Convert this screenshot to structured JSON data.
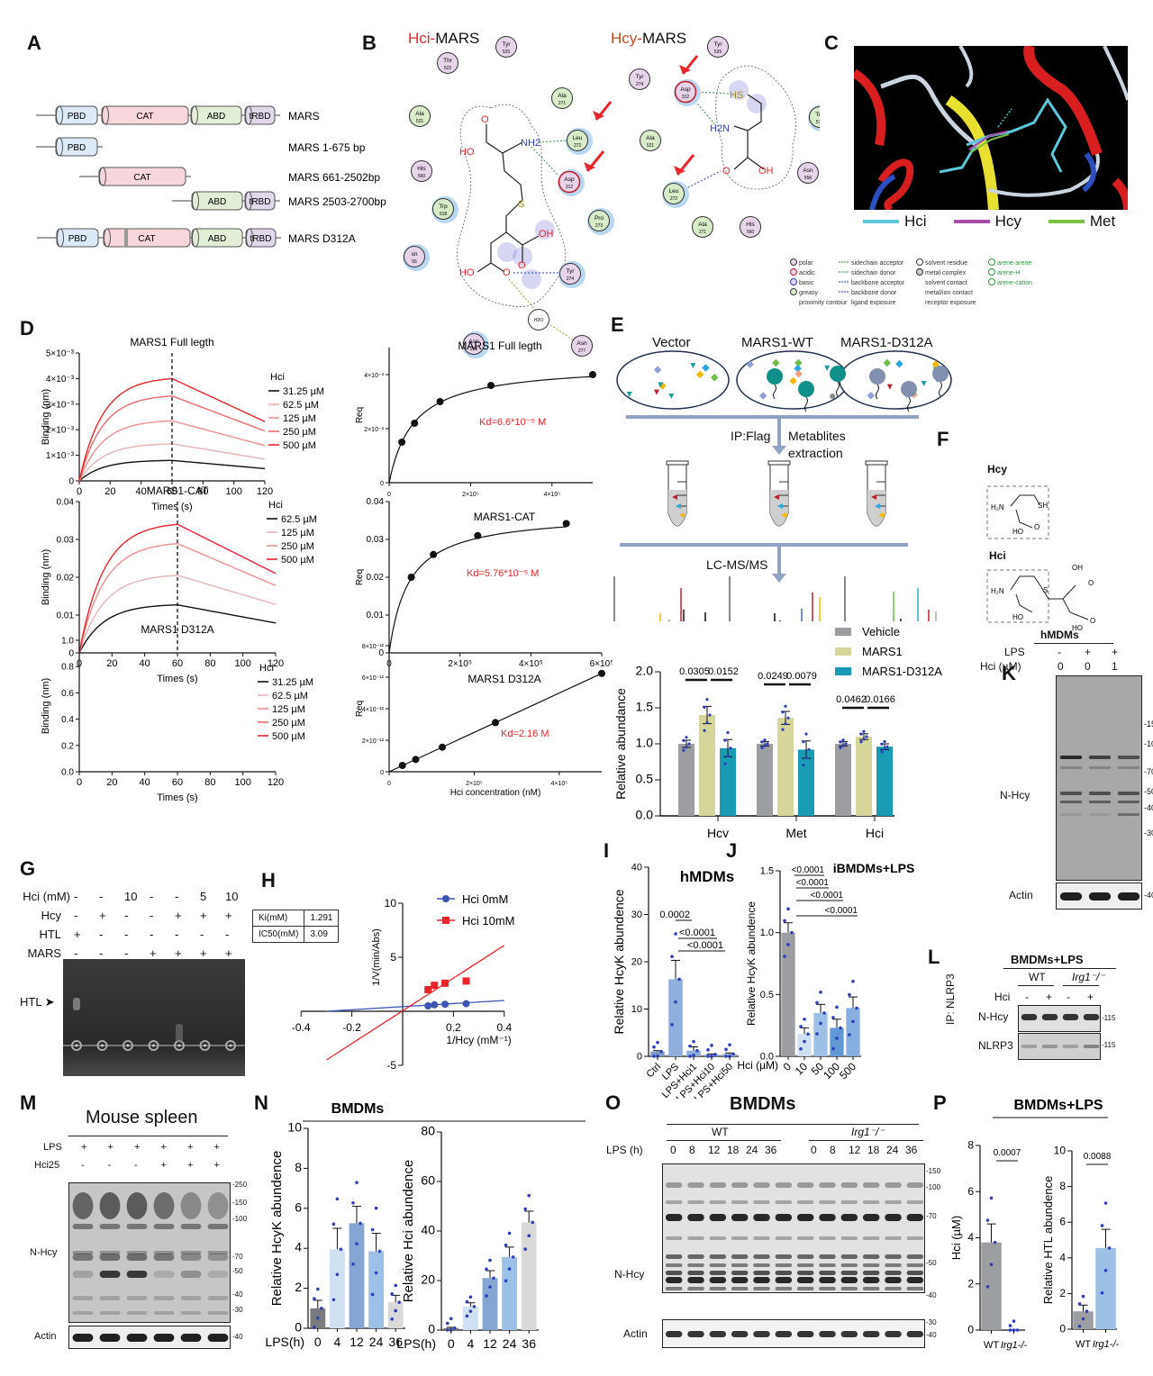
{
  "panels": {
    "A": {
      "label": "A",
      "constructs": [
        {
          "name": "MARS",
          "domains": [
            "PBD",
            "CAT",
            "ABD",
            "tRBD"
          ]
        },
        {
          "name": "MARS 1-675 bp",
          "domains": [
            "PBD"
          ]
        },
        {
          "name": "MARS 661-2502bp",
          "domains": [
            "CAT"
          ]
        },
        {
          "name": "MARS 2503-2700bp",
          "domains": [
            "ABD",
            "tRBD"
          ]
        },
        {
          "name": "MARS D312A",
          "domains": [
            "PBD",
            "CAT",
            "ABD",
            "tRBD"
          ]
        }
      ],
      "domain_colors": {
        "PBD": "#dce9f6",
        "CAT": "#f7d6dc",
        "ABD": "#e2efd6",
        "tRBD": "#e2d8ec"
      }
    },
    "B": {
      "label": "B",
      "left_title_prefix": "Hci-",
      "left_title_suffix": "MARS",
      "right_title_prefix": "Hcy-",
      "right_title_suffix": "MARS",
      "left_residues": [
        {
          "name": "Tyr",
          "num": "525",
          "type": "polar"
        },
        {
          "name": "Thr",
          "num": "522",
          "type": "polar"
        },
        {
          "name": "Ala",
          "num": "271",
          "type": "greasy"
        },
        {
          "name": "Ala",
          "num": "521",
          "type": "greasy"
        },
        {
          "name": "Leu",
          "num": "272",
          "type": "greasy"
        },
        {
          "name": "His",
          "num": "560",
          "type": "polar"
        },
        {
          "name": "Asp",
          "num": "312",
          "type": "acidic"
        },
        {
          "name": "Trp",
          "num": "518",
          "type": "greasy"
        },
        {
          "name": "Pro",
          "num": "273",
          "type": "greasy"
        },
        {
          "name": "sn",
          "num": "56",
          "type": "polar"
        },
        {
          "name": "Tyr",
          "num": "274",
          "type": "polar"
        },
        {
          "name": "H2O",
          "num": "",
          "type": "solvent"
        },
        {
          "name": "Asn",
          "num": "283",
          "type": "polar"
        },
        {
          "name": "Asn",
          "num": "277",
          "type": "polar"
        }
      ],
      "right_residues": [
        {
          "name": "Tyr",
          "num": "525",
          "type": "polar"
        },
        {
          "name": "Tyr",
          "num": "274",
          "type": "polar"
        },
        {
          "name": "Asp",
          "num": "312",
          "type": "acidic"
        },
        {
          "name": "Ala",
          "num": "521",
          "type": "greasy"
        },
        {
          "name": "Trp",
          "num": "518",
          "type": "greasy"
        },
        {
          "name": "Leu",
          "num": "272",
          "type": "greasy"
        },
        {
          "name": "Asn",
          "num": "556",
          "type": "polar"
        },
        {
          "name": "Ala",
          "num": "271",
          "type": "greasy"
        },
        {
          "name": "His",
          "num": "560",
          "type": "polar"
        }
      ],
      "atoms": {
        "o": "O",
        "ho": "HO",
        "nh2": "NH2",
        "s": "S",
        "oh": "OH",
        "hs": "HS",
        "h2n": "H2N"
      },
      "legend": [
        [
          "polar",
          "sidechain acceptor",
          "solvent residue",
          "arene-arene"
        ],
        [
          "acidic",
          "sidechain donor",
          "metal complex",
          "arene-H"
        ],
        [
          "basic",
          "backbone acceptor",
          "solvent contact",
          "arene-cation"
        ],
        [
          "greasy",
          "backbone donor",
          "metal/ion contact",
          ""
        ],
        [
          "proximity contour",
          "ligand exposure",
          "receptor exposure",
          ""
        ]
      ]
    },
    "C": {
      "label": "C",
      "legend": [
        {
          "name": "Hci",
          "color": "#5bc8dc"
        },
        {
          "name": "Hcy",
          "color": "#a64fa8"
        },
        {
          "name": "Met",
          "color": "#7cc242"
        }
      ]
    },
    "D": {
      "label": "D"
    },
    "E": {
      "label": "E",
      "groups": [
        "Vector",
        "MARS1-WT",
        "MARS1-D312A"
      ],
      "step1_left": "IP:Flag",
      "step1_right_1": "Metablites",
      "step1_right_2": "extraction",
      "step2": "LC-MS/MS"
    },
    "F": {
      "label": "F",
      "mol1": "Hcy",
      "mol2": "Hci",
      "sh": "SH",
      "h2n": "H2N",
      "ho": "HO",
      "o": "O",
      "oh": "OH",
      "s": "S"
    },
    "G": {
      "label": "G",
      "rows": [
        {
          "label": "Hci (mM)",
          "values": [
            "-",
            "-",
            "10",
            "-",
            "-",
            "5",
            "10"
          ]
        },
        {
          "label": "Hcy",
          "values": [
            "-",
            "+",
            "-",
            "-",
            "+",
            "+",
            "+"
          ]
        },
        {
          "label": "HTL",
          "values": [
            "+",
            "-",
            "-",
            "-",
            "-",
            "-",
            "-"
          ]
        },
        {
          "label": "MARS",
          "values": [
            "-",
            "-",
            "-",
            "+",
            "+",
            "+",
            "+"
          ]
        }
      ],
      "marker": "HTL"
    },
    "H": {
      "label": "H",
      "table": [
        {
          "k": "Ki(mM)",
          "v": "1.291"
        },
        {
          "k": "IC50(mM)",
          "v": "3.09"
        }
      ]
    },
    "K": {
      "label": "K",
      "title": "hMDMs",
      "row1_label": "LPS",
      "row1": [
        "-",
        "+",
        "+"
      ],
      "row2_label": "Hci (µM)",
      "row2": [
        "0",
        "0",
        "1"
      ],
      "band_label": "N-Hcy",
      "loading": "Actin",
      "markers": [
        "150",
        "100",
        "70",
        "50",
        "40",
        "30"
      ],
      "actin_marker": "40"
    },
    "L": {
      "label": "L",
      "title": "BMDMs+LPS",
      "groups": [
        "WT",
        "Irg1-/-"
      ],
      "row_label": "Hci",
      "row": [
        "-",
        "+",
        "-",
        "+"
      ],
      "ip_label": "IP: NLRP3",
      "bands": [
        "N-Hcy",
        "NLRP3"
      ],
      "marker": "115"
    },
    "M": {
      "label": "M",
      "title": "Mouse spleen",
      "row1_label": "LPS",
      "row1": [
        "+",
        "+",
        "+",
        "+",
        "+",
        "+"
      ],
      "row2_label": "Hci25",
      "row2": [
        "-",
        "-",
        "-",
        "+",
        "+",
        "+"
      ],
      "band_label": "N-Hcy",
      "loading": "Actin",
      "markers": [
        "250",
        "150",
        "100",
        "70",
        "50",
        "40",
        "30"
      ],
      "actin_marker": "40"
    },
    "N": {
      "label": "N",
      "title": "BMDMs"
    },
    "O": {
      "label": "O",
      "title": "BMDMs",
      "groups": [
        "WT",
        "Irg1-/-"
      ],
      "row_label": "LPS (h)",
      "timepoints": [
        "0",
        "8",
        "12",
        "18",
        "24",
        "36"
      ],
      "band_label": "N-Hcy",
      "loading": "Actin",
      "markers": [
        "150",
        "100",
        "70",
        "50",
        "40",
        "30"
      ],
      "actin_marker": "40"
    },
    "P": {
      "label": "P",
      "title": "BMDMs+LPS"
    }
  },
  "chart_data": [
    {
      "id": "D-full-kinetics",
      "type": "line",
      "title": "MARS1 Full legth",
      "xlabel": "Times (s)",
      "ylabel": "Binding (nm)",
      "xlim": [
        0,
        120
      ],
      "ylim": [
        0,
        0.005
      ],
      "xticks": [
        "0",
        "20",
        "40",
        "60",
        "80",
        "100",
        "120"
      ],
      "yticks": [
        "0",
        "1×10⁻³",
        "2×10⁻³",
        "3×10⁻³",
        "4×10⁻³",
        "5×10⁻³"
      ],
      "legend_title": "Hci",
      "series": [
        {
          "name": "31.25 µM",
          "peak": 0.0008,
          "end": 0.00048,
          "color": "#111111"
        },
        {
          "name": "62.5 µM",
          "peak": 0.00145,
          "end": 0.00085,
          "color": "#e8b4b4"
        },
        {
          "name": "125 µM",
          "peak": 0.00235,
          "end": 0.00138,
          "color": "#f08f8f"
        },
        {
          "name": "250 µM",
          "peak": 0.00332,
          "end": 0.00195,
          "color": "#ec6a6a"
        },
        {
          "name": "500 µM",
          "peak": 0.004,
          "end": 0.00232,
          "color": "#e8252a"
        }
      ]
    },
    {
      "id": "D-full-req",
      "type": "scatter",
      "title": "MARS1 Full legth",
      "xlabel": "",
      "ylabel": "Req",
      "xlim": [
        0,
        500000
      ],
      "ylim": [
        0,
        0.005
      ],
      "xticks": [
        "0",
        "2×10⁵",
        "4×10⁵"
      ],
      "yticks": [
        "0",
        "2×10⁻³",
        "4×10⁻³"
      ],
      "x": [
        31250,
        62500,
        125000,
        250000,
        500000
      ],
      "y": [
        0.0015,
        0.0022,
        0.003,
        0.0036,
        0.004
      ],
      "annotation": "Kd=6.6*10⁻⁵ M"
    },
    {
      "id": "D-cat-kinetics",
      "type": "line",
      "title": "MARS1-CAT",
      "xlabel": "Times (s)",
      "ylabel": "Binding (nm)",
      "xlim": [
        0,
        120
      ],
      "ylim": [
        0,
        0.04
      ],
      "xticks": [
        "0",
        "20",
        "40",
        "60",
        "80",
        "100",
        "120"
      ],
      "yticks": [
        "0",
        "0.01",
        "0.02",
        "0.03",
        "0.04"
      ],
      "legend_title": "Hci",
      "series": [
        {
          "name": "62.5 µM",
          "peak": 0.0127,
          "end": 0.0079,
          "color": "#111111"
        },
        {
          "name": "125 µM",
          "peak": 0.0205,
          "end": 0.0128,
          "color": "#e8b4b4"
        },
        {
          "name": "250 µM",
          "peak": 0.0289,
          "end": 0.0178,
          "color": "#f08f8f"
        },
        {
          "name": "500 µM",
          "peak": 0.034,
          "end": 0.021,
          "color": "#e8252a"
        }
      ]
    },
    {
      "id": "D-cat-req",
      "type": "scatter",
      "title": "MARS1-CAT",
      "xlabel": "",
      "ylabel": "Req",
      "xlim": [
        0,
        600000
      ],
      "ylim": [
        0,
        0.04
      ],
      "xticks": [
        "0",
        "2×10⁵",
        "4×10⁵",
        "6×10⁵"
      ],
      "yticks": [
        "0",
        "0.01",
        "0.02",
        "0.03",
        "0.04"
      ],
      "x": [
        62500,
        125000,
        250000,
        500000
      ],
      "y": [
        0.02,
        0.026,
        0.031,
        0.0342
      ],
      "annotation": "Kd=5.76*10⁻⁵ M"
    },
    {
      "id": "D-d312a-kinetics",
      "type": "line",
      "title": "MARS1 D312A",
      "xlabel": "Times (s)",
      "ylabel": "Binding (nm)",
      "xlim": [
        0,
        120
      ],
      "ylim": [
        0,
        1.0
      ],
      "xticks": [
        "0",
        "20",
        "40",
        "60",
        "80",
        "100",
        "120"
      ],
      "yticks": [
        "0.0",
        "0.2",
        "0.4",
        "0.6",
        "0.8",
        "1.0"
      ],
      "legend_title": "Hci",
      "series": [
        {
          "name": "31.25 µM",
          "peak": 0,
          "end": 0,
          "color": "#111111"
        },
        {
          "name": "62.5 µM",
          "peak": 0,
          "end": 0,
          "color": "#e8b4b4"
        },
        {
          "name": "125 µM",
          "peak": 0,
          "end": 0,
          "color": "#f08f8f"
        },
        {
          "name": "250 µM",
          "peak": 0,
          "end": 0,
          "color": "#ec6a6a"
        },
        {
          "name": "500 µM",
          "peak": 0,
          "end": 0,
          "color": "#e8252a"
        }
      ]
    },
    {
      "id": "D-d312a-req",
      "type": "scatter",
      "title": "MARS1 D312A",
      "xlabel": "Hci concentration (nM)",
      "ylabel": "Req",
      "xlim": [
        0,
        500000
      ],
      "ylim": [
        0,
        8e-12
      ],
      "xticks": [
        "0",
        "2×10⁵",
        "4×10⁵"
      ],
      "yticks": [
        "0",
        "2×10⁻¹²",
        "4×10⁻¹²",
        "6×10⁻¹²",
        "8×10⁻¹²"
      ],
      "x": [
        31250,
        62500,
        125000,
        250000,
        500000
      ],
      "y": [
        4e-13,
        7.8e-13,
        1.56e-12,
        3.12e-12,
        6.24e-12
      ],
      "annotation": "Kd=2.16 M"
    },
    {
      "id": "E-bar",
      "type": "bar",
      "title": "",
      "xlabel": "",
      "ylabel": "Relative abundance",
      "ylim": [
        0,
        2.0
      ],
      "yticks": [
        "0.0",
        "0.5",
        "1.0",
        "1.5",
        "2.0"
      ],
      "categories": [
        "Hcy",
        "Met",
        "Hci"
      ],
      "series": [
        {
          "name": "Vehicle",
          "color": "#9d9ea2",
          "values": [
            1.0,
            1.0,
            1.0
          ],
          "sem": [
            0.05,
            0.03,
            0.03
          ]
        },
        {
          "name": "MARS1",
          "color": "#d6d59a",
          "values": [
            1.4,
            1.36,
            1.1
          ],
          "sem": [
            0.12,
            0.09,
            0.04
          ]
        },
        {
          "name": "MARS1-D312A",
          "color": "#1a9bb4",
          "values": [
            0.94,
            0.92,
            0.96
          ],
          "sem": [
            0.12,
            0.12,
            0.04
          ]
        }
      ],
      "pvalues": [
        [
          "0.0305",
          "0.0152"
        ],
        [
          "0.0249",
          "0.0079"
        ],
        [
          "0.0462",
          "0.0166"
        ]
      ]
    },
    {
      "id": "H-lineweaver",
      "type": "scatter",
      "title": "",
      "xlabel": "1/Hcy (mM⁻¹)",
      "ylabel": "1/V(min/Abs)",
      "xlim": [
        -0.4,
        0.4
      ],
      "ylim": [
        -5,
        10
      ],
      "xticks": [
        "-0.4",
        "-0.2",
        "0.2",
        "0.4"
      ],
      "yticks": [
        "-5",
        "5",
        "10"
      ],
      "series": [
        {
          "name": "Hci 0mM",
          "color": "#3a55b4",
          "x": [
            0.1,
            0.125,
            0.167,
            0.25
          ],
          "y": [
            0.5,
            0.6,
            0.65,
            0.7
          ]
        },
        {
          "name": "Hci 10mM",
          "color": "#e8252a",
          "x": [
            0.1,
            0.125,
            0.167,
            0.25
          ],
          "y": [
            2.0,
            2.4,
            2.6,
            2.8
          ]
        }
      ]
    },
    {
      "id": "I-bar",
      "type": "bar",
      "title": "hMDMs",
      "ylabel": "Relative HcyK abundence",
      "ylim": [
        0,
        40
      ],
      "yticks": [
        "0",
        "10",
        "20",
        "30",
        "40"
      ],
      "categories": [
        "Ctrl",
        "LPS",
        "LPS+Hci1",
        "LPS+Hci10",
        "LPS+Hci50"
      ],
      "values": [
        1.0,
        16.3,
        1.2,
        0.4,
        0.5
      ],
      "sem": [
        0.2,
        4.0,
        0.8,
        0.1,
        0.2
      ],
      "colors": [
        "#7f9cc8",
        "#8faedb",
        "#8faedb",
        "#8faedb",
        "#8faedb"
      ],
      "pvalues": [
        "0.0002",
        "<0.0001",
        "<0.0001"
      ]
    },
    {
      "id": "J-bar",
      "type": "bar",
      "title": "iBMDMs+LPS",
      "ylabel": "Relative HcyK abundence",
      "xlabel": "Hci (µM)",
      "ylim": [
        0,
        1.5
      ],
      "yticks": [
        "0.0",
        "0.5",
        "1.0",
        "1.5"
      ],
      "categories": [
        "0",
        "10",
        "50",
        "100",
        "500"
      ],
      "values": [
        1.0,
        0.18,
        0.35,
        0.23,
        0.39
      ],
      "sem": [
        0.08,
        0.05,
        0.07,
        0.07,
        0.09
      ],
      "colors": [
        "#9d9ea2",
        "#cfe0f3",
        "#9dc0e6",
        "#5f98d4",
        "#87aee0"
      ],
      "pvalues": [
        "<0.0001",
        "<0.0001",
        "<0.0001",
        "<0.0001"
      ]
    },
    {
      "id": "N-hcyk",
      "type": "bar",
      "title": "BMDMs",
      "ylabel": "Relative HcyK abundence",
      "xlabel": "LPS(h)",
      "ylim": [
        0,
        10
      ],
      "yticks": [
        "0",
        "2",
        "4",
        "6",
        "8",
        "10"
      ],
      "categories": [
        "0",
        "4",
        "12",
        "24",
        "36"
      ],
      "values": [
        1.0,
        3.95,
        5.25,
        3.85,
        1.3
      ],
      "sem": [
        0.4,
        1.05,
        0.85,
        0.9,
        0.35
      ],
      "colors": [
        "#7a7b7f",
        "#cfe0f3",
        "#85a6d2",
        "#9dc0e6",
        "#d9d9d9"
      ]
    },
    {
      "id": "N-hci",
      "type": "bar",
      "title": "BMDMs",
      "ylabel": "Relative Hci abundence",
      "xlabel": "LPS(h)",
      "ylim": [
        0,
        80
      ],
      "yticks": [
        "0",
        "20",
        "40",
        "60",
        "80"
      ],
      "categories": [
        "0",
        "4",
        "12",
        "24",
        "36"
      ],
      "values": [
        0.8,
        9.5,
        21,
        29.5,
        43.5
      ],
      "sem": [
        0.3,
        1.5,
        3,
        4,
        4.5
      ],
      "colors": [
        "#7a7b7f",
        "#cfe0f3",
        "#85a6d2",
        "#9dc0e6",
        "#d9d9d9"
      ]
    },
    {
      "id": "P-hci",
      "type": "bar",
      "title": "BMDMs+LPS",
      "ylabel": "Hci (µM)",
      "ylim": [
        0,
        8
      ],
      "yticks": [
        "0",
        "2",
        "4",
        "6",
        "8"
      ],
      "categories": [
        "WT",
        "Irg1-/-"
      ],
      "values": [
        3.8,
        0.0
      ],
      "sem": [
        0.8,
        0.0
      ],
      "colors": [
        "#9d9ea2",
        "#9dc0e6"
      ],
      "pvalue": "0.0007"
    },
    {
      "id": "P-htl",
      "type": "bar",
      "title": "BMDMs+LPS",
      "ylabel": "Relative HTL abundence",
      "ylim": [
        0,
        10
      ],
      "yticks": [
        "0",
        "2",
        "4",
        "6",
        "8",
        "10"
      ],
      "categories": [
        "WT",
        "Irg1-/-"
      ],
      "values": [
        1.0,
        4.55
      ],
      "sem": [
        0.35,
        1.05
      ],
      "colors": [
        "#9d9ea2",
        "#9dc0e6"
      ],
      "pvalue": "0.0088"
    }
  ]
}
